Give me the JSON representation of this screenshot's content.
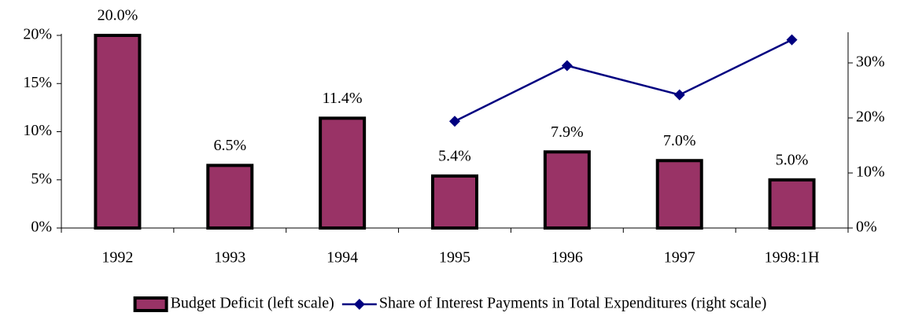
{
  "chart_data": {
    "type": "bar",
    "categories": [
      "1992",
      "1993",
      "1994",
      "1995",
      "1996",
      "1997",
      "1998:1H"
    ],
    "series": [
      {
        "name": "Budget Deficit (left scale)",
        "color": "#993366",
        "type": "bar",
        "values": [
          20.0,
          6.5,
          11.4,
          5.4,
          7.9,
          7.0,
          5.0
        ],
        "value_labels": [
          "20.0%",
          "6.5%",
          "11.4%",
          "5.4%",
          "7.9%",
          "7.0%",
          "5.0%"
        ]
      },
      {
        "name": "Share of Interest Payments in Total Expenditures (right scale)",
        "color": "#000080",
        "type": "line",
        "axis": "y2",
        "values": [
          null,
          null,
          null,
          19.4,
          29.5,
          24.2,
          34.2
        ]
      }
    ],
    "ylim": [
      0,
      20
    ],
    "yticks": [
      {
        "value": 0,
        "label": "0%"
      },
      {
        "value": 5,
        "label": "5%"
      },
      {
        "value": 10,
        "label": "10%"
      },
      {
        "value": 15,
        "label": "15%"
      },
      {
        "value": 20,
        "label": "20%"
      }
    ],
    "y2lim": [
      0,
      35
    ],
    "y2ticks": [
      {
        "value": 0,
        "label": "0%"
      },
      {
        "value": 10,
        "label": "10%"
      },
      {
        "value": 20,
        "label": "20%"
      },
      {
        "value": 30,
        "label": "30%"
      }
    ],
    "legend": "bottom"
  }
}
